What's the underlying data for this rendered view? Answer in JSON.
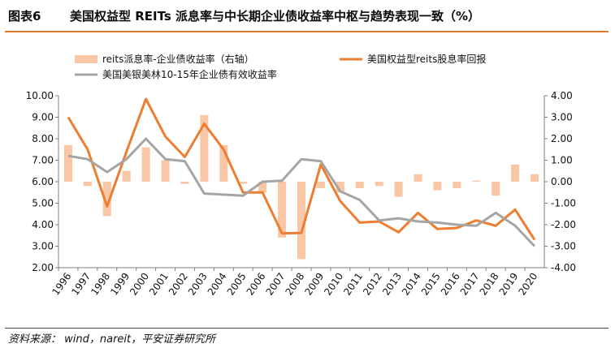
{
  "header": {
    "figure_number": "图表6",
    "title": "美国权益型 REITs 派息率与中长期企业债收益率中枢与趋势表现一致（%）"
  },
  "footer": {
    "source": "资料来源： wind，nareit，平安证券研究所"
  },
  "colors": {
    "bar": "#f9c7a6",
    "reits_line": "#ed7d31",
    "bond_line": "#a5a5a5",
    "accent": "#e07a2a",
    "axis": "#7f7f7f"
  },
  "chart_data": {
    "type": "bar",
    "categories": [
      "1996",
      "1997",
      "1998",
      "1999",
      "2000",
      "2001",
      "2002",
      "2003",
      "2004",
      "2005",
      "2006",
      "2007",
      "2008",
      "2009",
      "2010",
      "2011",
      "2012",
      "2013",
      "2014",
      "2015",
      "2016",
      "2017",
      "2018",
      "2019",
      "2020"
    ],
    "series": [
      {
        "name": "reits派息率-企业债收益率（右轴）",
        "type": "bar",
        "axis": "right",
        "values": [
          1.7,
          -0.2,
          -1.6,
          0.5,
          1.6,
          1.0,
          -0.1,
          3.1,
          1.7,
          -0.1,
          -0.5,
          -2.6,
          -3.6,
          -0.3,
          -0.5,
          -0.3,
          -0.2,
          -0.7,
          0.35,
          -0.4,
          -0.3,
          0.05,
          -0.65,
          0.8,
          0.35
        ]
      },
      {
        "name": "美国权益型reits股息率回报",
        "type": "line",
        "axis": "left",
        "values": [
          9.0,
          7.5,
          4.85,
          7.4,
          9.85,
          8.1,
          7.15,
          8.7,
          7.5,
          5.5,
          5.5,
          3.6,
          3.62,
          6.8,
          5.1,
          4.1,
          4.15,
          3.65,
          4.55,
          3.8,
          3.85,
          4.2,
          3.95,
          4.7,
          3.3
        ]
      },
      {
        "name": "美国美银美林10-15年企业债有效收益率",
        "type": "line",
        "axis": "left",
        "values": [
          7.2,
          7.05,
          6.45,
          7.05,
          8.0,
          7.05,
          6.95,
          5.45,
          5.4,
          5.35,
          6.0,
          6.05,
          7.05,
          6.95,
          5.55,
          5.15,
          4.2,
          4.3,
          4.15,
          4.1,
          4.0,
          3.95,
          4.55,
          3.95,
          3.0
        ]
      }
    ],
    "y_left": {
      "ylim": [
        2.0,
        10.0
      ],
      "ticks": [
        "10.00",
        "9.00",
        "8.00",
        "7.00",
        "6.00",
        "5.00",
        "4.00",
        "3.00",
        "2.00"
      ]
    },
    "y_right": {
      "ylim": [
        -4.0,
        4.0
      ],
      "ticks": [
        "4.00",
        "3.00",
        "2.00",
        "1.00",
        "0.00",
        "-1.00",
        "-2.00",
        "-3.00",
        "-4.00"
      ]
    },
    "legend": {
      "placement": "top",
      "items": [
        {
          "label": "reits派息率-企业债收益率（右轴）",
          "kind": "bar"
        },
        {
          "label": "美国权益型reits股息率回报",
          "kind": "line-orange"
        },
        {
          "label": "美国美银美林10-15年企业债有效收益率",
          "kind": "line-gray"
        }
      ]
    },
    "grid": false
  }
}
